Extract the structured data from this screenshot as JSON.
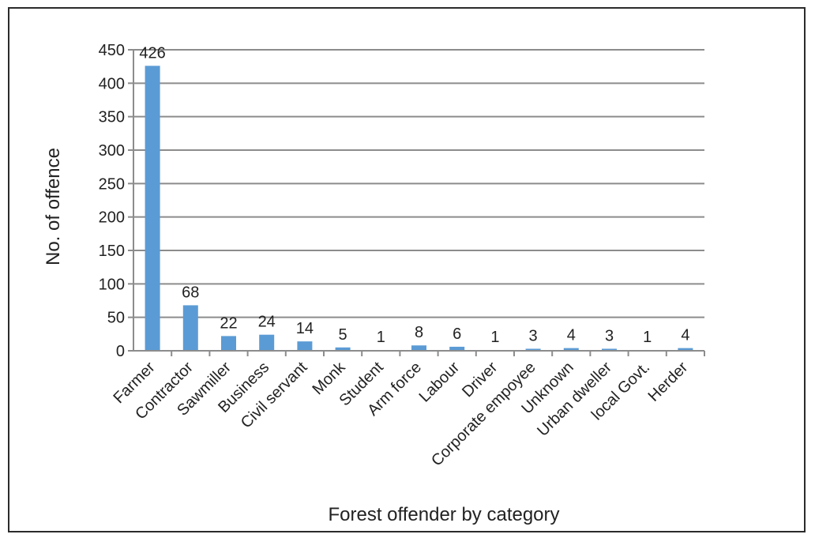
{
  "chart_data": {
    "type": "bar",
    "title": "",
    "xlabel": "Forest offender by category",
    "ylabel": "No. of offence",
    "categories": [
      "Farmer",
      "Contractor",
      "Sawmiller",
      "Business",
      "Civil servant",
      "Monk",
      "Student",
      "Arm force",
      "Labour",
      "Driver",
      "Corporate empoyee",
      "Unknown",
      "Urban dweller",
      "local Govt.",
      "Herder"
    ],
    "values": [
      426,
      68,
      22,
      24,
      14,
      5,
      1,
      8,
      6,
      1,
      3,
      4,
      3,
      1,
      4
    ],
    "ylim": [
      0,
      450
    ],
    "yticks": [
      0,
      50,
      100,
      150,
      200,
      250,
      300,
      350,
      400,
      450
    ],
    "grid": true,
    "legend": "none",
    "bar_color": "#5b9bd5",
    "grid_color": "#8c8c8c"
  }
}
